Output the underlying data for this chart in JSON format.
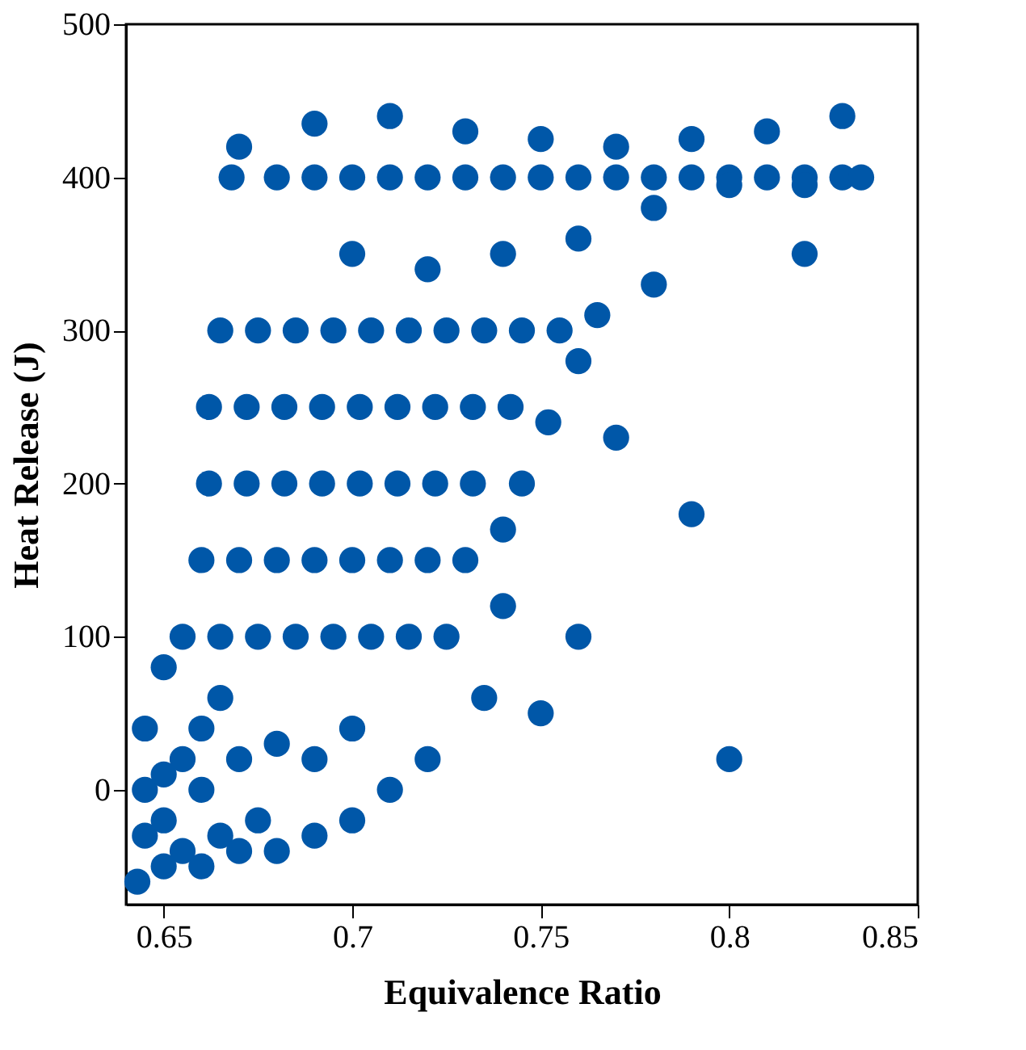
{
  "chart_data": {
    "type": "scatter",
    "xlabel": "Equivalence Ratio",
    "ylabel": "Heat Release (J)",
    "xlim": [
      0.64,
      0.85
    ],
    "xticks": [
      0.65,
      0.7,
      0.75,
      0.8,
      0.85
    ],
    "ylim": [
      -75,
      500
    ],
    "yticks": [
      0,
      100,
      200,
      300,
      400,
      500
    ],
    "grid": false,
    "marker": "circle",
    "series": [
      {
        "color": "#0057a8",
        "x": [
          0.643,
          0.645,
          0.645,
          0.65,
          0.65,
          0.65,
          0.655,
          0.655,
          0.66,
          0.66,
          0.66,
          0.665,
          0.665,
          0.67,
          0.67,
          0.675,
          0.68,
          0.68,
          0.69,
          0.69,
          0.7,
          0.7,
          0.71,
          0.72,
          0.645,
          0.65,
          0.655,
          0.665,
          0.675,
          0.685,
          0.695,
          0.705,
          0.715,
          0.725,
          0.66,
          0.67,
          0.68,
          0.69,
          0.7,
          0.71,
          0.72,
          0.73,
          0.74,
          0.662,
          0.672,
          0.682,
          0.692,
          0.702,
          0.712,
          0.722,
          0.732,
          0.662,
          0.672,
          0.682,
          0.692,
          0.702,
          0.712,
          0.722,
          0.732,
          0.742,
          0.752,
          0.665,
          0.675,
          0.685,
          0.695,
          0.705,
          0.715,
          0.725,
          0.735,
          0.745,
          0.755,
          0.765,
          0.668,
          0.68,
          0.69,
          0.7,
          0.71,
          0.72,
          0.73,
          0.74,
          0.75,
          0.76,
          0.77,
          0.78,
          0.79,
          0.8,
          0.81,
          0.82,
          0.83,
          0.835,
          0.67,
          0.69,
          0.71,
          0.73,
          0.75,
          0.77,
          0.79,
          0.81,
          0.83,
          0.7,
          0.72,
          0.74,
          0.76,
          0.78,
          0.8,
          0.82,
          0.76,
          0.77,
          0.78,
          0.79,
          0.8,
          0.75,
          0.74,
          0.76,
          0.82,
          0.735,
          0.745
        ],
        "values": [
          -60,
          -30,
          0,
          -50,
          -20,
          10,
          -40,
          20,
          -50,
          0,
          40,
          -30,
          60,
          -40,
          20,
          -20,
          -40,
          30,
          -30,
          20,
          -20,
          40,
          0,
          20,
          40,
          80,
          100,
          100,
          100,
          100,
          100,
          100,
          100,
          100,
          150,
          150,
          150,
          150,
          150,
          150,
          150,
          150,
          170,
          200,
          200,
          200,
          200,
          200,
          200,
          200,
          200,
          250,
          250,
          250,
          250,
          250,
          250,
          250,
          250,
          250,
          240,
          300,
          300,
          300,
          300,
          300,
          300,
          300,
          300,
          300,
          300,
          310,
          400,
          400,
          400,
          400,
          400,
          400,
          400,
          400,
          400,
          400,
          400,
          400,
          400,
          400,
          400,
          400,
          400,
          400,
          420,
          435,
          440,
          430,
          425,
          420,
          425,
          430,
          440,
          350,
          340,
          350,
          360,
          380,
          395,
          395,
          280,
          230,
          330,
          180,
          20,
          50,
          120,
          100,
          350,
          60,
          200
        ]
      }
    ]
  }
}
